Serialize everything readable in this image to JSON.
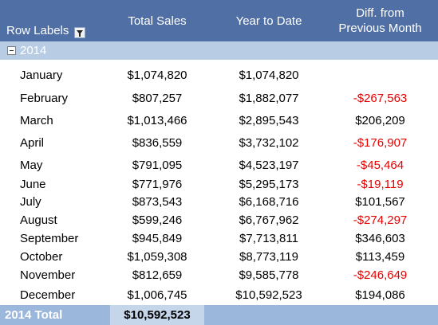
{
  "header": {
    "row_labels": "Row Labels",
    "total_sales": "Total Sales",
    "year_to_date": "Year to Date",
    "diff_line1": "Diff. from",
    "diff_line2": "Previous Month"
  },
  "year_label": "2014",
  "rows": [
    {
      "month": "January",
      "sales": "$1,074,820",
      "ytd": "$1,074,820",
      "diff": ""
    },
    {
      "month": "February",
      "sales": "$807,257",
      "ytd": "$1,882,077",
      "diff": "-$267,563"
    },
    {
      "month": "March",
      "sales": "$1,013,466",
      "ytd": "$2,895,543",
      "diff": "$206,209"
    },
    {
      "month": "April",
      "sales": "$836,559",
      "ytd": "$3,732,102",
      "diff": "-$176,907"
    },
    {
      "month": "May",
      "sales": "$791,095",
      "ytd": "$4,523,197",
      "diff": "-$45,464"
    },
    {
      "month": "June",
      "sales": "$771,976",
      "ytd": "$5,295,173",
      "diff": "-$19,119"
    },
    {
      "month": "July",
      "sales": "$873,543",
      "ytd": "$6,168,716",
      "diff": "$101,567"
    },
    {
      "month": "August",
      "sales": "$599,246",
      "ytd": "$6,767,962",
      "diff": "-$274,297"
    },
    {
      "month": "September",
      "sales": "$945,849",
      "ytd": "$7,713,811",
      "diff": "$346,603"
    },
    {
      "month": "October",
      "sales": "$1,059,308",
      "ytd": "$8,773,119",
      "diff": "$113,459"
    },
    {
      "month": "November",
      "sales": "$812,659",
      "ytd": "$9,585,778",
      "diff": "-$246,649"
    },
    {
      "month": "December",
      "sales": "$1,006,745",
      "ytd": "$10,592,523",
      "diff": "$194,086"
    }
  ],
  "total": {
    "label": "2014 Total",
    "sales": "$10,592,523"
  },
  "colors": {
    "header": "#4f6fa5",
    "year_row": "#b8cce4",
    "total_row": "#9bb7dc",
    "negative": "#e60000"
  },
  "icons": {
    "filter": "filter-dropdown-icon",
    "collapse": "collapse-minus-icon"
  }
}
